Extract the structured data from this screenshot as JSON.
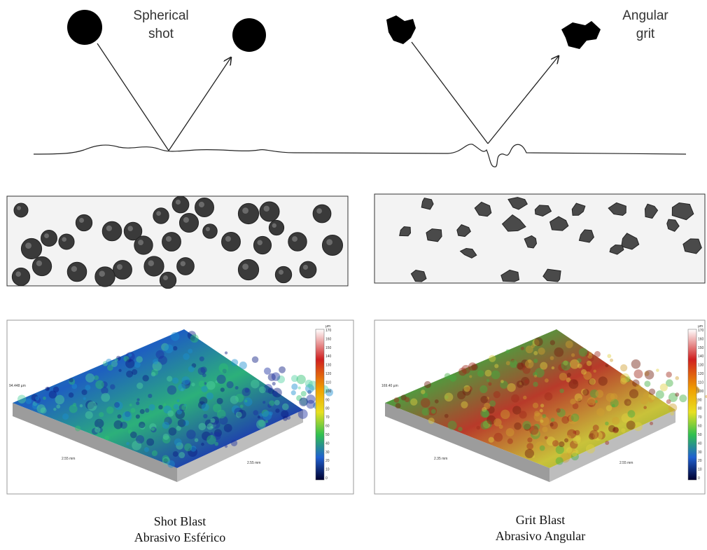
{
  "top": {
    "spherical_label": [
      "Spherical",
      "shot"
    ],
    "angular_label": [
      "Angular",
      "grit"
    ]
  },
  "left_plot": {
    "unit": "µm",
    "scale_ticks": [
      "170",
      "160",
      "150",
      "140",
      "130",
      "120",
      "110",
      "100",
      "90",
      "80",
      "70",
      "60",
      "50",
      "40",
      "30",
      "20",
      "10",
      "0"
    ],
    "height_label": "94.448 µm",
    "axis_label_a": "2.55 mm",
    "axis_label_b": "2.55 mm"
  },
  "right_plot": {
    "unit": "µm",
    "scale_ticks": [
      "170",
      "160",
      "150",
      "140",
      "130",
      "120",
      "110",
      "100",
      "90",
      "80",
      "70",
      "60",
      "50",
      "40",
      "30",
      "20",
      "10",
      "0"
    ],
    "height_label": "169.40 µm",
    "axis_label_a": "2.35 mm",
    "axis_label_b": "2.55 mm"
  },
  "captions": {
    "left": [
      "Shot Blast",
      "Abrasivo Esférico"
    ],
    "right": [
      "Grit Blast",
      "Abrasivo Angular"
    ]
  }
}
